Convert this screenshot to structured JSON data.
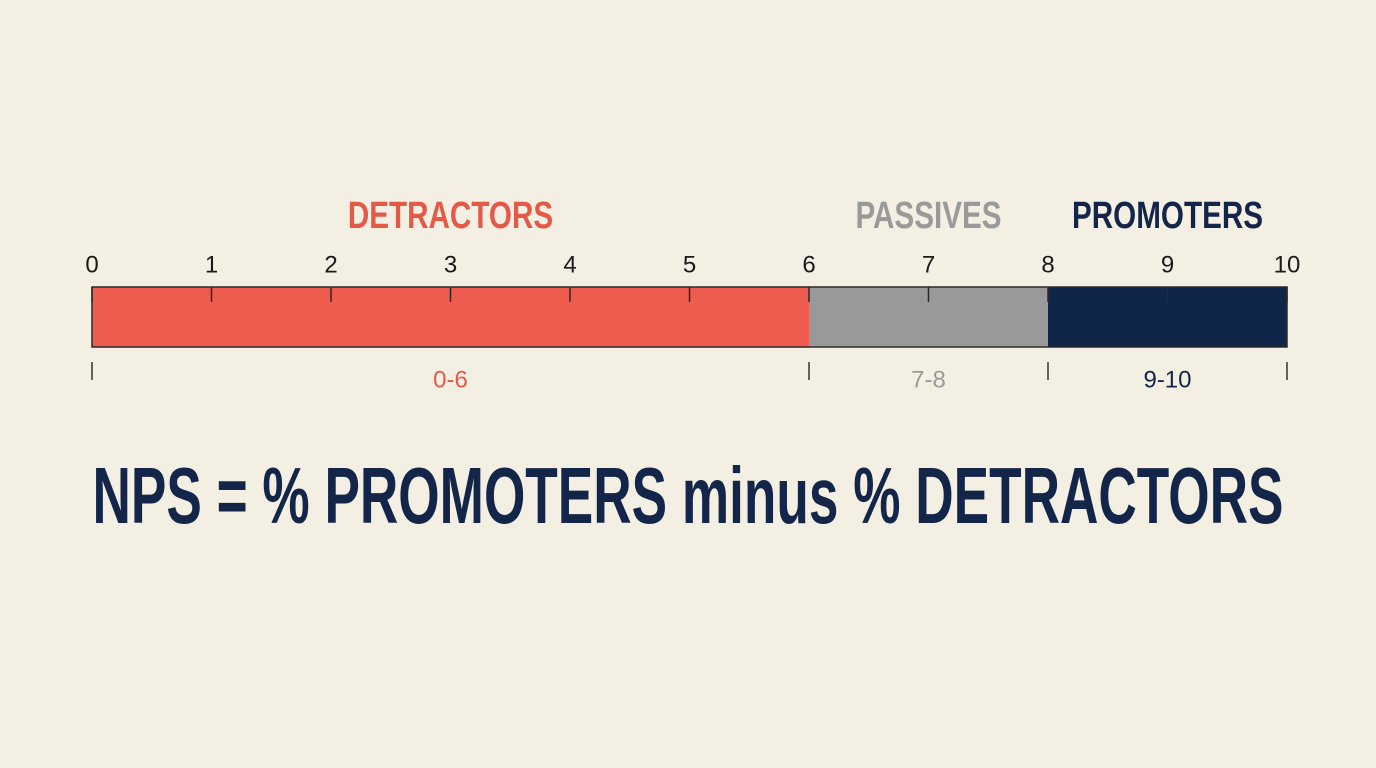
{
  "scale": {
    "lim": [
      0,
      10
    ],
    "ticks": [
      0,
      1,
      2,
      3,
      4,
      5,
      6,
      7,
      8,
      9,
      10
    ]
  },
  "segments": [
    {
      "name": "DETRACTORS",
      "range": "0-6",
      "start": 0,
      "end": 6,
      "color": "#ee5b4f",
      "text_color": "#e35a48"
    },
    {
      "name": "PASSIVES",
      "range": "7-8",
      "start": 6,
      "end": 8,
      "color": "#999999",
      "text_color": "#9a9a9a"
    },
    {
      "name": "PROMOTERS",
      "range": "9-10",
      "start": 8,
      "end": 10,
      "color": "#10254a",
      "text_color": "#13264a"
    }
  ],
  "formula": "NPS = % PROMOTERS minus % DETRACTORS"
}
